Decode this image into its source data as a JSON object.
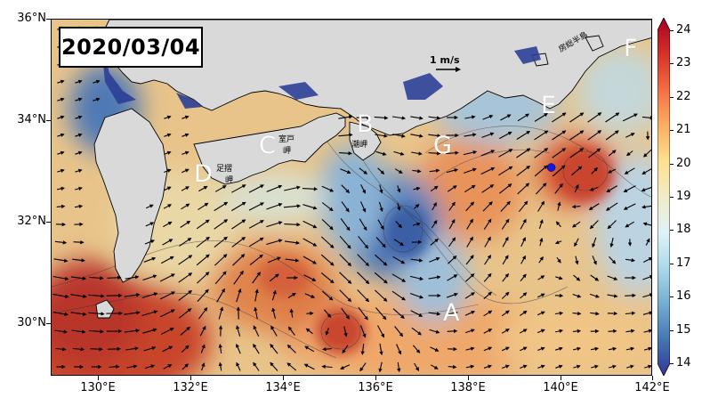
{
  "date": "2020/03/04",
  "scale": {
    "label": "1 m/s"
  },
  "axes": {
    "y_labels": [
      "36°N",
      "34°N",
      "32°N",
      "30°N"
    ],
    "x_labels": [
      "130°E",
      "132°E",
      "134°E",
      "136°E",
      "138°E",
      "140°E",
      "142°E"
    ]
  },
  "region_letters": [
    "A",
    "B",
    "C",
    "D",
    "E",
    "F",
    "G"
  ],
  "place_names": [
    "室戸",
    "岬",
    "潮岬",
    "足摺",
    "岬",
    "房総半島"
  ],
  "colorbar": {
    "ticks": [
      "24",
      "23",
      "22",
      "21",
      "20",
      "19",
      "18",
      "17",
      "16",
      "15",
      "14"
    ],
    "min": 14,
    "max": 24
  },
  "marker": {
    "color": "#1515e6"
  },
  "colors": {
    "land": "#d9d9d9",
    "cold": "#2c3f96",
    "warm": "#c0392b"
  },
  "map_data": {
    "lon_range": [
      129,
      142
    ],
    "lat_range": [
      29,
      36
    ],
    "marker_position": {
      "lon": 139.8,
      "lat": 33.1
    }
  }
}
